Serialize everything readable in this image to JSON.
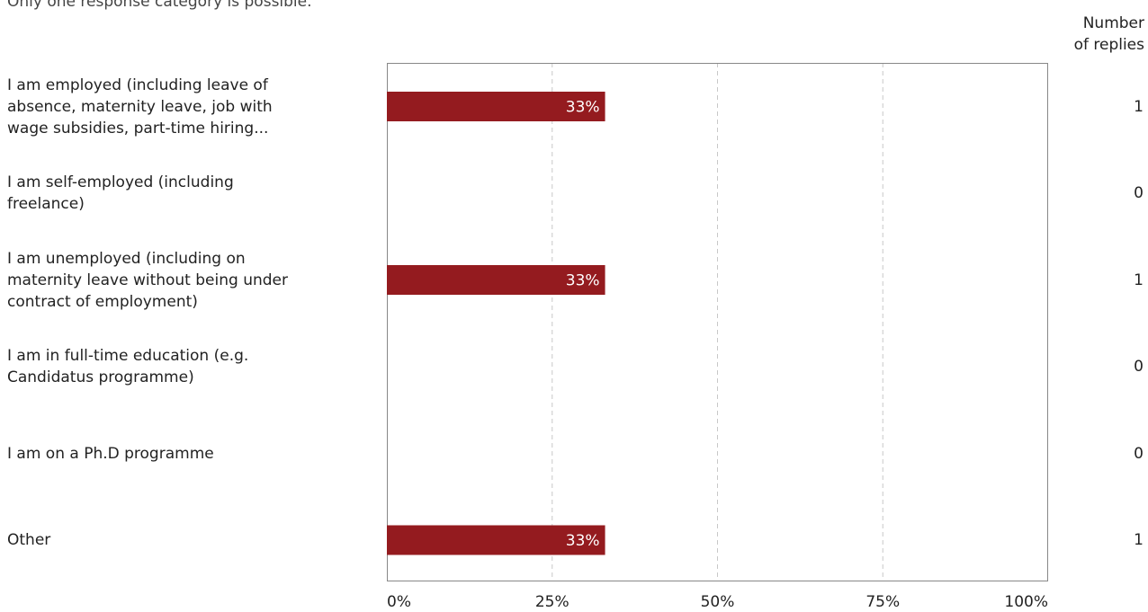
{
  "subtitle": "Only one response category is possible.",
  "count_header": [
    "Number",
    "of replies"
  ],
  "colors": {
    "bar": "#941b1f",
    "frame": "#888888",
    "grid": "#c8c8c8"
  },
  "chart_data": {
    "type": "bar",
    "orientation": "horizontal",
    "title": "",
    "xlabel": "",
    "ylabel": "",
    "xlim": [
      0,
      100
    ],
    "grid": true,
    "categories": [
      "I am employed (including leave of absence, maternity leave, job with wage subsidies, part-time hiring...",
      "I am self-employed (including freelance)",
      "I am unemployed (including on maternity leave without being under contract of employment)",
      "I am in full-time education (e.g. Candidatus programme)",
      "I am on a Ph.D programme",
      "Other"
    ],
    "category_lines": [
      [
        "I am employed (including leave of",
        "absence, maternity leave, job with",
        "wage subsidies, part-time hiring..."
      ],
      [
        "I am self-employed (including",
        "freelance)"
      ],
      [
        "I am unemployed (including on",
        "maternity leave without being under",
        "contract of employment)"
      ],
      [
        "I am in full-time education (e.g.",
        "Candidatus programme)"
      ],
      [
        "I am on a Ph.D programme"
      ],
      [
        "Other"
      ]
    ],
    "values": [
      33,
      0,
      33,
      0,
      0,
      33
    ],
    "value_labels": [
      "33%",
      "",
      "33%",
      "",
      "",
      "33%"
    ],
    "counts": [
      "1",
      "0",
      "1",
      "0",
      "0",
      "1"
    ],
    "ticks": [
      0,
      25,
      50,
      75,
      100
    ],
    "tick_labels": [
      "0%",
      "25%",
      "50%",
      "75%",
      "100%"
    ]
  }
}
